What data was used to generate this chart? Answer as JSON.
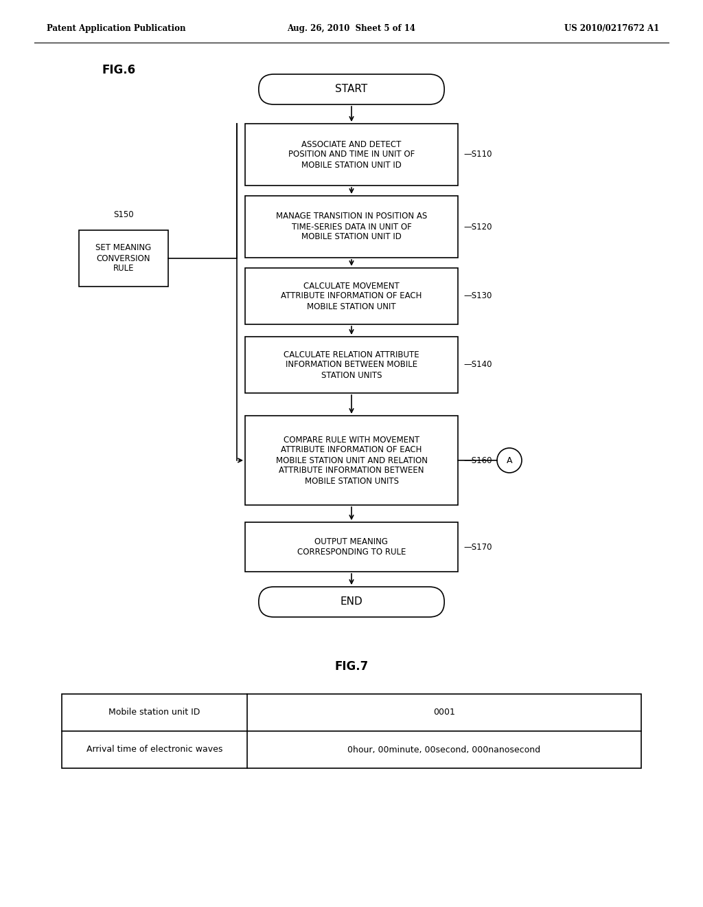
{
  "background_color": "#ffffff",
  "header_left": "Patent Application Publication",
  "header_center": "Aug. 26, 2010  Sheet 5 of 14",
  "header_right": "US 2010/0217672 A1",
  "fig6_label": "FIG.6",
  "fig7_label": "FIG.7",
  "start_label": "START",
  "end_label": "END",
  "boxes": [
    {
      "id": "s110",
      "text": "ASSOCIATE AND DETECT\nPOSITION AND TIME IN UNIT OF\nMOBILE STATION UNIT ID",
      "label": "S110"
    },
    {
      "id": "s120",
      "text": "MANAGE TRANSITION IN POSITION AS\nTIME-SERIES DATA IN UNIT OF\nMOBILE STATION UNIT ID",
      "label": "S120"
    },
    {
      "id": "s130",
      "text": "CALCULATE MOVEMENT\nATTRIBUTE INFORMATION OF EACH\nMOBILE STATION UNIT",
      "label": "S130"
    },
    {
      "id": "s140",
      "text": "CALCULATE RELATION ATTRIBUTE\nINFORMATION BETWEEN MOBILE\nSTATION UNITS",
      "label": "S140"
    },
    {
      "id": "s160",
      "text": "COMPARE RULE WITH MOVEMENT\nATTRIBUTE INFORMATION OF EACH\nMOBILE STATION UNIT AND RELATION\nATTRIBUTE INFORMATION BETWEEN\nMOBILE STATION UNITS",
      "label": "S160"
    },
    {
      "id": "s170",
      "text": "OUTPUT MEANING\nCORRESPONDING TO RULE",
      "label": "S170"
    }
  ],
  "side_box": {
    "text": "SET MEANING\nCONVERSION\nRULE",
    "label": "S150"
  },
  "circle_a_label": "A",
  "table_headers": [
    "Mobile station unit ID",
    "0001"
  ],
  "table_row": [
    "Arrival time of electronic waves",
    "0hour, 00minute, 00second, 000nanosecond"
  ]
}
